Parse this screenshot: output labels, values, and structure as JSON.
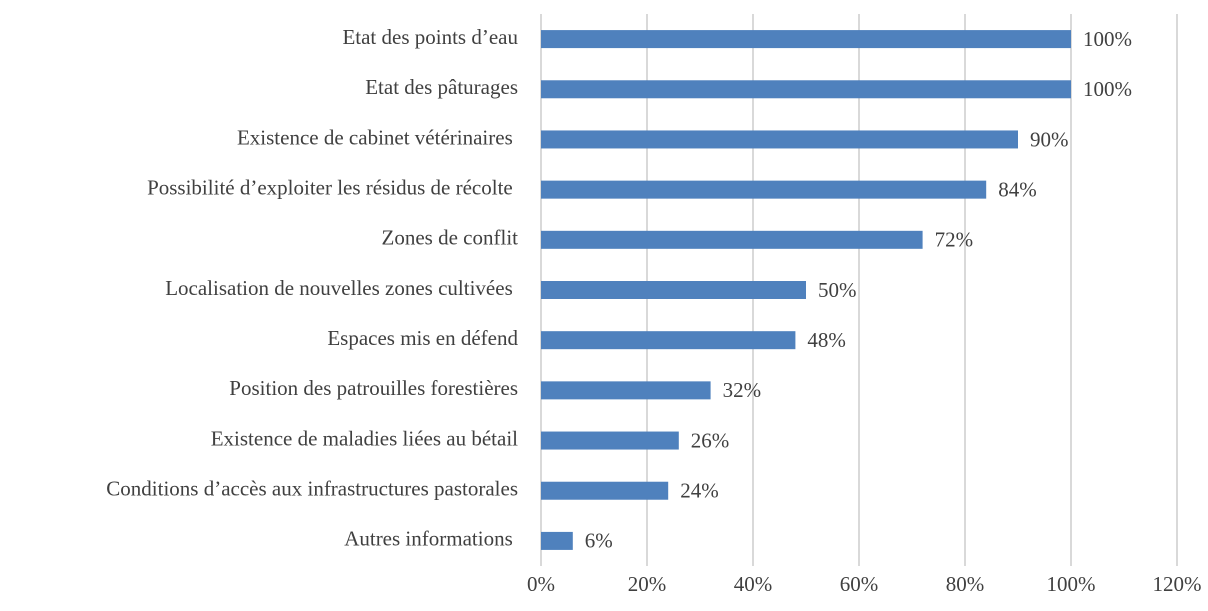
{
  "chart_data": {
    "type": "bar",
    "orientation": "horizontal",
    "categories": [
      "Etat des points d’eau",
      "Etat des pâturages",
      "Existence de cabinet vétérinaires ",
      "Possibilité d’exploiter les résidus de récolte ",
      "Zones de conflit",
      "Localisation de nouvelles zones cultivées ",
      "Espaces mis en défend",
      "Position des patrouilles forestières",
      "Existence de maladies liées au bétail",
      "Conditions d’accès aux infrastructures pastorales",
      "Autres informations "
    ],
    "values": [
      100,
      100,
      90,
      84,
      72,
      50,
      48,
      32,
      26,
      24,
      6
    ],
    "value_labels": [
      "100%",
      "100%",
      "90%",
      "84%",
      "72%",
      "50%",
      "48%",
      "32%",
      "26%",
      "24%",
      "6%"
    ],
    "color": "#4f81bd",
    "xlim": [
      0,
      120
    ],
    "xticks": [
      {
        "value": 0,
        "label": "0%"
      },
      {
        "value": 20,
        "label": "20%"
      },
      {
        "value": 40,
        "label": "40%"
      },
      {
        "value": 60,
        "label": "60%"
      },
      {
        "value": 80,
        "label": "80%"
      },
      {
        "value": 100,
        "label": "100%"
      },
      {
        "value": 120,
        "label": "120%"
      }
    ],
    "grid": true
  }
}
